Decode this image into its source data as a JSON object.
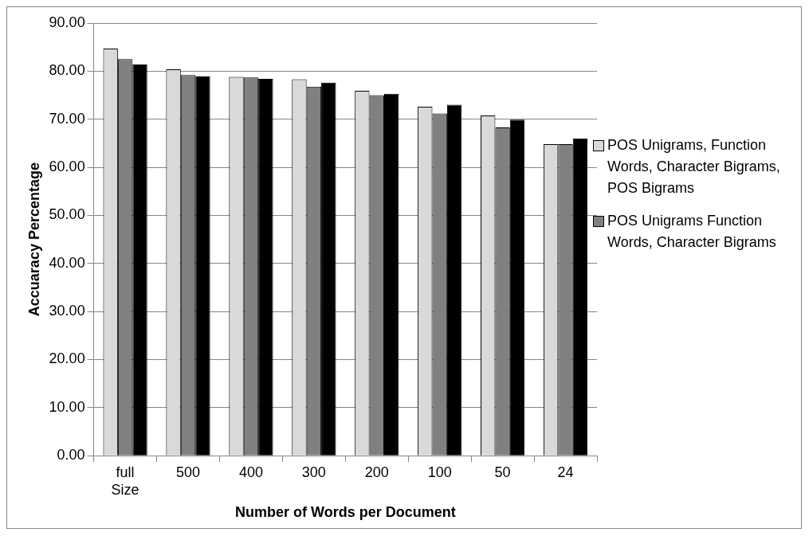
{
  "chart_data": {
    "type": "bar",
    "xlabel": "Number of Words per Document",
    "ylabel": "Accuaracy Percentage",
    "categories": [
      "full Size",
      "500",
      "400",
      "300",
      "200",
      "100",
      "50",
      "24"
    ],
    "series": [
      {
        "name": "POS Unigrams, Function Words, Character Bigrams, POS Bigrams",
        "color": "#d9d9d9",
        "values": [
          84.7,
          80.4,
          78.8,
          78.3,
          75.9,
          72.6,
          70.8,
          64.8
        ]
      },
      {
        "name": "POS Unigrams Function Words, Character Bigrams",
        "color": "#808080",
        "values": [
          82.5,
          79.2,
          78.7,
          76.8,
          75.0,
          71.2,
          68.3,
          64.8
        ]
      },
      {
        "color": "#000000",
        "values": [
          81.4,
          78.9,
          78.4,
          77.6,
          75.3,
          73.0,
          69.9,
          66.0
        ]
      }
    ],
    "ylim": [
      0,
      90
    ],
    "yticks": [
      {
        "value": 0,
        "label": "0.00"
      },
      {
        "value": 10,
        "label": "10.00"
      },
      {
        "value": 20,
        "label": "20.00"
      },
      {
        "value": 30,
        "label": "30.00"
      },
      {
        "value": 40,
        "label": "40.00"
      },
      {
        "value": 50,
        "label": "50.00"
      },
      {
        "value": 60,
        "label": "60.00"
      },
      {
        "value": 70,
        "label": "70.00"
      },
      {
        "value": 80,
        "label": "80.00"
      },
      {
        "value": 90,
        "label": "90.00"
      }
    ],
    "grid": "y",
    "legend": "right"
  }
}
